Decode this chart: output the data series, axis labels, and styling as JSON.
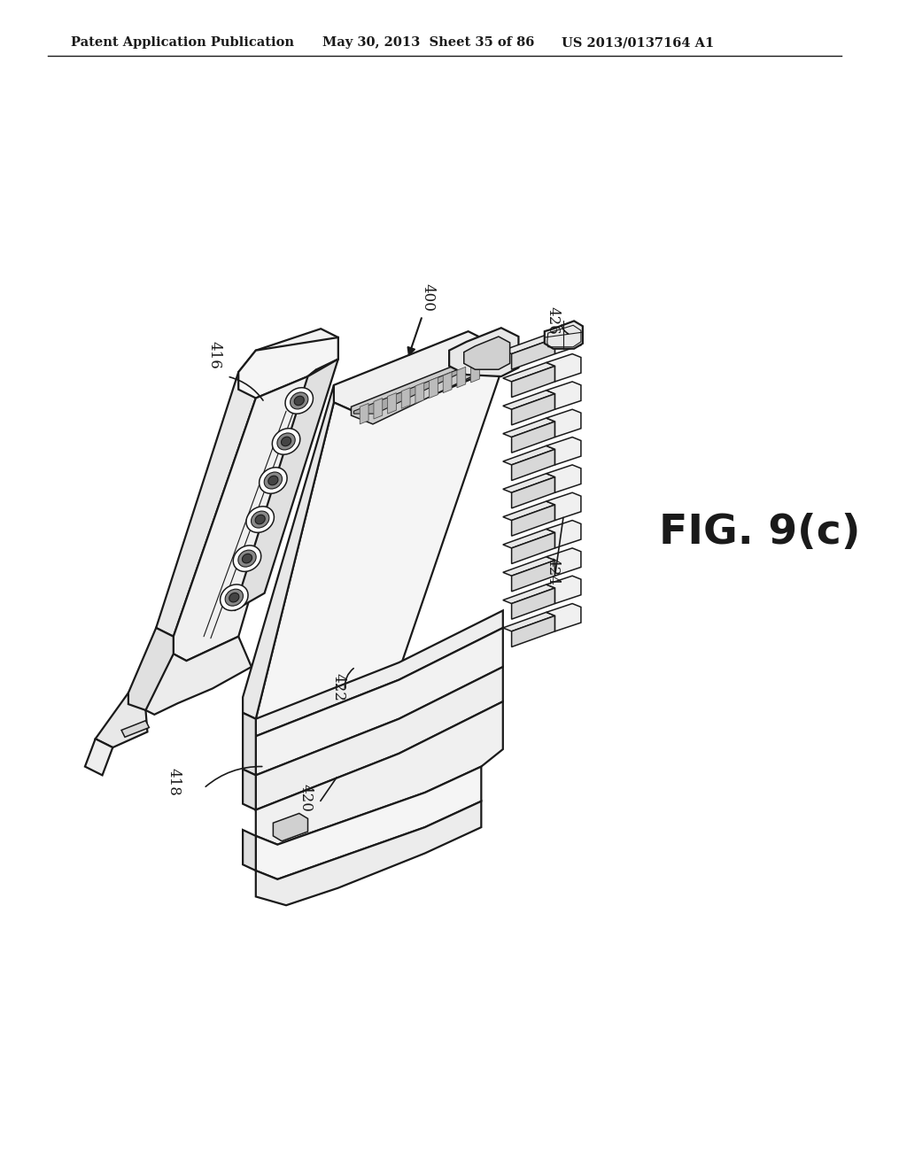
{
  "background_color": "#ffffff",
  "header_left": "Patent Application Publication",
  "header_mid": "May 30, 2013  Sheet 35 of 86",
  "header_right": "US 2013/0137164 A1",
  "fig_label": "FIG. 9(c)",
  "line_color": "#1a1a1a",
  "text_color": "#1a1a1a",
  "lw_main": 1.6,
  "lw_detail": 1.1,
  "lw_thin": 0.8
}
